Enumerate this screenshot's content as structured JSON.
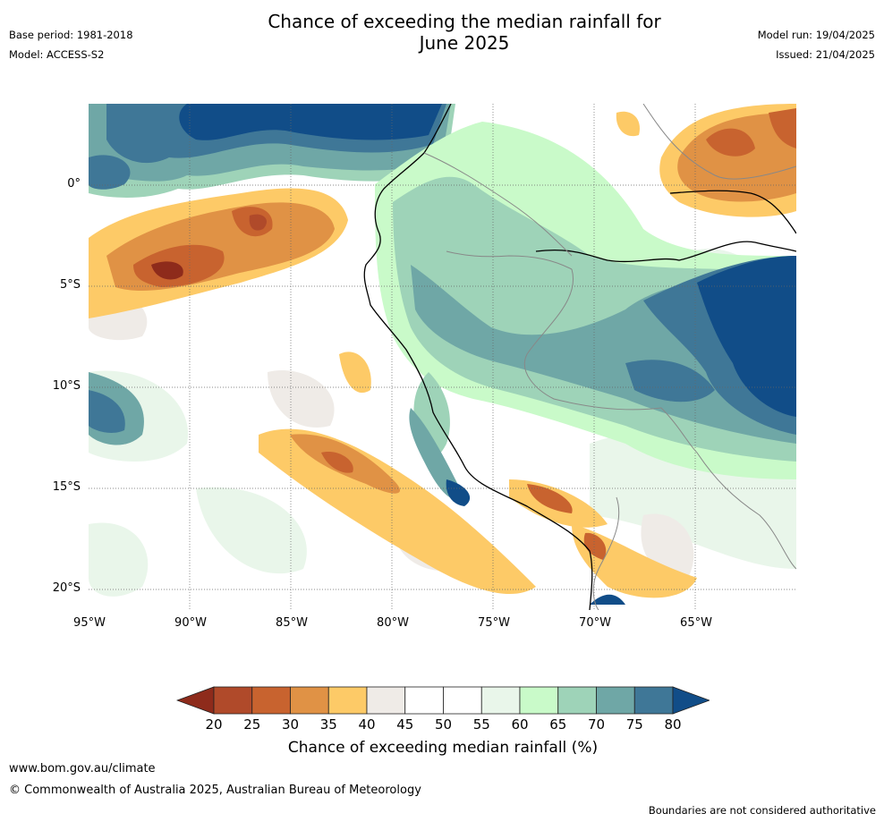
{
  "title_line1": "Chance of exceeding the median rainfall for",
  "title_line2": "June 2025",
  "meta_left": [
    "Base period: 1981-2018",
    "Model: ACCESS-S2"
  ],
  "meta_right": [
    "Model run: 19/04/2025",
    "Issued: 21/04/2025"
  ],
  "map": {
    "lat_labels": [
      "0°",
      "5°S",
      "10°S",
      "15°S",
      "20°S"
    ],
    "lon_labels": [
      "95°W",
      "90°W",
      "85°W",
      "80°W",
      "75°W",
      "70°W",
      "65°W"
    ]
  },
  "colorbar": {
    "ticks": [
      "20",
      "25",
      "30",
      "35",
      "40",
      "45",
      "50",
      "55",
      "60",
      "65",
      "70",
      "75",
      "80"
    ],
    "colors": [
      "#8e2b1b",
      "#b04a2a",
      "#c8632f",
      "#e09245",
      "#fdca67",
      "#efebe7",
      "#ffffff",
      "#ffffff",
      "#e9f6ea",
      "#c9fac9",
      "#9ed3b8",
      "#6fa7a6",
      "#3f7797",
      "#114d88"
    ],
    "label": "Chance of exceeding median rainfall (%)"
  },
  "footer": {
    "url": "www.bom.gov.au/climate",
    "copyright": "© Commonwealth of Australia 2025, Australian Bureau of Meteorology",
    "disclaimer": "Boundaries are not considered authoritative"
  }
}
